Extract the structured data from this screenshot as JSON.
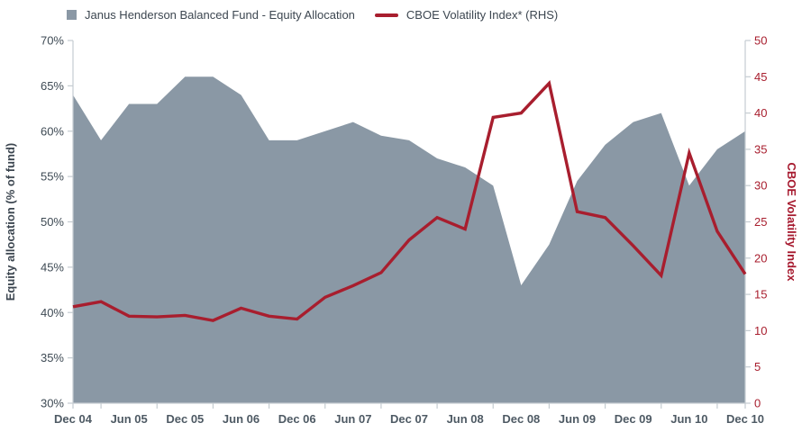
{
  "legend": {
    "series1_label": "Janus Henderson Balanced Fund - Equity Allocation",
    "series2_label": "CBOE Volatility Index* (RHS)"
  },
  "axes": {
    "left": {
      "title": "Equity allocation (% of fund)",
      "tick_labels": [
        "70%",
        "65%",
        "60%",
        "55%",
        "50%",
        "45%",
        "40%",
        "35%",
        "30%"
      ]
    },
    "right": {
      "title": "CBOE Volatility Index",
      "tick_labels": [
        "50",
        "45",
        "40",
        "35",
        "30",
        "25",
        "20",
        "15",
        "10",
        "5",
        "0"
      ]
    },
    "x": {
      "tick_labels": [
        "Dec 04",
        "Jun 05",
        "Dec 05",
        "Jun 06",
        "Dec 06",
        "Jun 07",
        "Dec 07",
        "Jun 08",
        "Dec 08",
        "Jun 09",
        "Dec 09",
        "Jun 10",
        "Dec 10"
      ]
    }
  },
  "chart_data": {
    "type": "area",
    "x": [
      "Dec 04",
      "Mar 05",
      "Jun 05",
      "Sep 05",
      "Dec 05",
      "Mar 06",
      "Jun 06",
      "Sep 06",
      "Dec 06",
      "Mar 07",
      "Jun 07",
      "Sep 07",
      "Dec 07",
      "Mar 08",
      "Jun 08",
      "Sep 08",
      "Dec 08",
      "Mar 09",
      "Jun 09",
      "Sep 09",
      "Dec 09",
      "Mar 10",
      "Jun 10",
      "Sep 10",
      "Dec 10"
    ],
    "series": [
      {
        "name": "Janus Henderson Balanced Fund - Equity Allocation",
        "type": "area",
        "axis": "left",
        "color": "#8a98a5",
        "values": [
          64,
          59,
          63,
          63,
          66,
          66,
          64,
          59,
          59,
          60,
          61,
          59.5,
          59,
          57,
          56,
          54,
          43,
          47.5,
          54.5,
          58.5,
          61,
          62,
          54,
          58,
          60
        ]
      },
      {
        "name": "CBOE Volatility Index* (RHS)",
        "type": "line",
        "axis": "right",
        "color": "#a81e2e",
        "values": [
          13.3,
          14.0,
          12.0,
          11.9,
          12.1,
          11.4,
          13.1,
          12.0,
          11.6,
          14.6,
          16.2,
          18.0,
          22.5,
          25.6,
          24.0,
          39.4,
          40.0,
          44.1,
          26.4,
          25.6,
          21.7,
          17.6,
          34.5,
          23.7,
          17.8
        ]
      }
    ],
    "left_axis_range": [
      30,
      70
    ],
    "right_axis_range": [
      0,
      50
    ],
    "grid": false,
    "legend_position": "top"
  },
  "colors": {
    "area": "#8a98a5",
    "line": "#a81e2e",
    "axis": "#c5ccd1",
    "left_text": "#3e4a54",
    "right_text": "#a81e2e",
    "x_text": "#4e5a64"
  }
}
